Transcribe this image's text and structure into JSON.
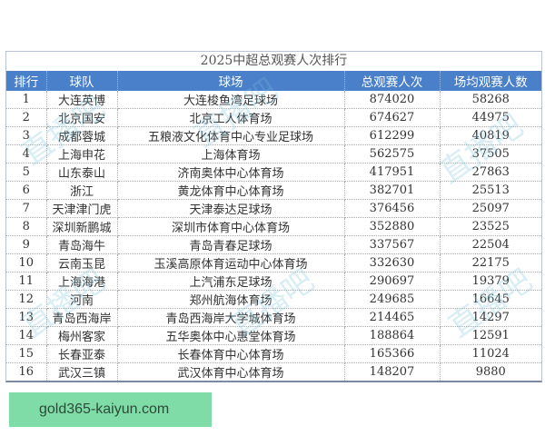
{
  "title": "2025中超总观赛人次排行",
  "columns": [
    "排行",
    "球队",
    "球场",
    "总观赛人次",
    "场均观赛人数"
  ],
  "rows": [
    [
      "1",
      "大连英博",
      "大连梭鱼湾足球场",
      "874020",
      "58268"
    ],
    [
      "2",
      "北京国安",
      "北京工人体育场",
      "674627",
      "44975"
    ],
    [
      "3",
      "成都蓉城",
      "五粮液文化体育中心专业足球场",
      "612299",
      "40819"
    ],
    [
      "4",
      "上海申花",
      "上海体育场",
      "562575",
      "37505"
    ],
    [
      "5",
      "山东泰山",
      "济南奥体中心体育场",
      "417951",
      "27863"
    ],
    [
      "6",
      "浙江",
      "黄龙体育中心体育场",
      "382701",
      "25513"
    ],
    [
      "7",
      "天津津门虎",
      "天津泰达足球场",
      "376456",
      "25097"
    ],
    [
      "8",
      "深圳新鹏城",
      "深圳市体育中心体育场",
      "352880",
      "23525"
    ],
    [
      "9",
      "青岛海牛",
      "青岛青春足球场",
      "337567",
      "22504"
    ],
    [
      "10",
      "云南玉昆",
      "玉溪高原体育运动中心体育场",
      "332630",
      "22175"
    ],
    [
      "11",
      "上海海港",
      "上汽浦东足球场",
      "290697",
      "19379"
    ],
    [
      "12",
      "河南",
      "郑州航海体育场",
      "249685",
      "16645"
    ],
    [
      "13",
      "青岛西海岸",
      "青岛西海岸大学城体育场",
      "214465",
      "14297"
    ],
    [
      "14",
      "梅州客家",
      "五华奥体中心惠堂体育场",
      "188864",
      "12591"
    ],
    [
      "15",
      "长春亚泰",
      "长春体育中心体育场",
      "165366",
      "11024"
    ],
    [
      "16",
      "武汉三镇",
      "武汉体育中心体育场",
      "148207",
      "9880"
    ]
  ],
  "watermark": "直播吧",
  "footer_badge": "gold365-kaiyun.com",
  "colors": {
    "header_bg": "#4a7fc9",
    "badge_bg": "#7fdca6"
  }
}
